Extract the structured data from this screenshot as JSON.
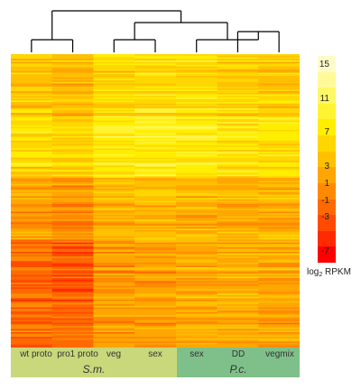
{
  "chart_data": {
    "type": "heatmap",
    "title": "",
    "columns": [
      "wt proto",
      "pro1 proto",
      "veg",
      "sex",
      "sex",
      "DD",
      "vegmix"
    ],
    "groups": [
      {
        "name": "S.m.",
        "columns": [
          "wt proto",
          "pro1 proto",
          "veg",
          "sex"
        ],
        "color": "#c9d87a"
      },
      {
        "name": "P.c.",
        "columns": [
          "sex",
          "DD",
          "vegmix"
        ],
        "color": "#7fc08a"
      }
    ],
    "dendrogram": {
      "clusters": [
        {
          "members": [
            0,
            1
          ]
        },
        {
          "members": [
            2,
            3
          ]
        },
        {
          "members": [
            5,
            6
          ]
        },
        {
          "members": [
            4,
            5,
            6
          ]
        },
        {
          "members": [
            2,
            3,
            4,
            5,
            6
          ]
        },
        {
          "members": [
            0,
            1,
            2,
            3,
            4,
            5,
            6
          ]
        }
      ]
    },
    "legend": {
      "title_prefix": "log",
      "title_sub": "2",
      "title_suffix": " RPKM",
      "ticks": [
        "15",
        "11",
        "7",
        "3",
        "1",
        "-1",
        "-3",
        "-7"
      ],
      "tick_values": [
        15,
        11,
        7,
        3,
        1,
        -1,
        -3,
        -7
      ],
      "colors": [
        "#fffccc",
        "#fffa99",
        "#fff766",
        "#fff333",
        "#ffee00",
        "#ffd700",
        "#ffc000",
        "#ffa600",
        "#ff8a00",
        "#ff6a00",
        "#ff4b00",
        "#ff2a00",
        "#ff0000"
      ]
    },
    "row_blocks": [
      {
        "rows": 40,
        "means": [
          5,
          4,
          6,
          6.5,
          6,
          5.5,
          5
        ]
      },
      {
        "rows": 40,
        "means": [
          6,
          5.5,
          7.5,
          8,
          7.5,
          7,
          6.5
        ]
      },
      {
        "rows": 40,
        "means": [
          1.5,
          0.5,
          3,
          3.5,
          3,
          3,
          3
        ]
      },
      {
        "rows": 40,
        "means": [
          -1.5,
          -2.5,
          1.5,
          2,
          2.5,
          3,
          2.5
        ]
      },
      {
        "rows": 30,
        "means": [
          -1.5,
          -1.5,
          1.5,
          1.5,
          2.5,
          2.5,
          2
        ]
      }
    ]
  }
}
